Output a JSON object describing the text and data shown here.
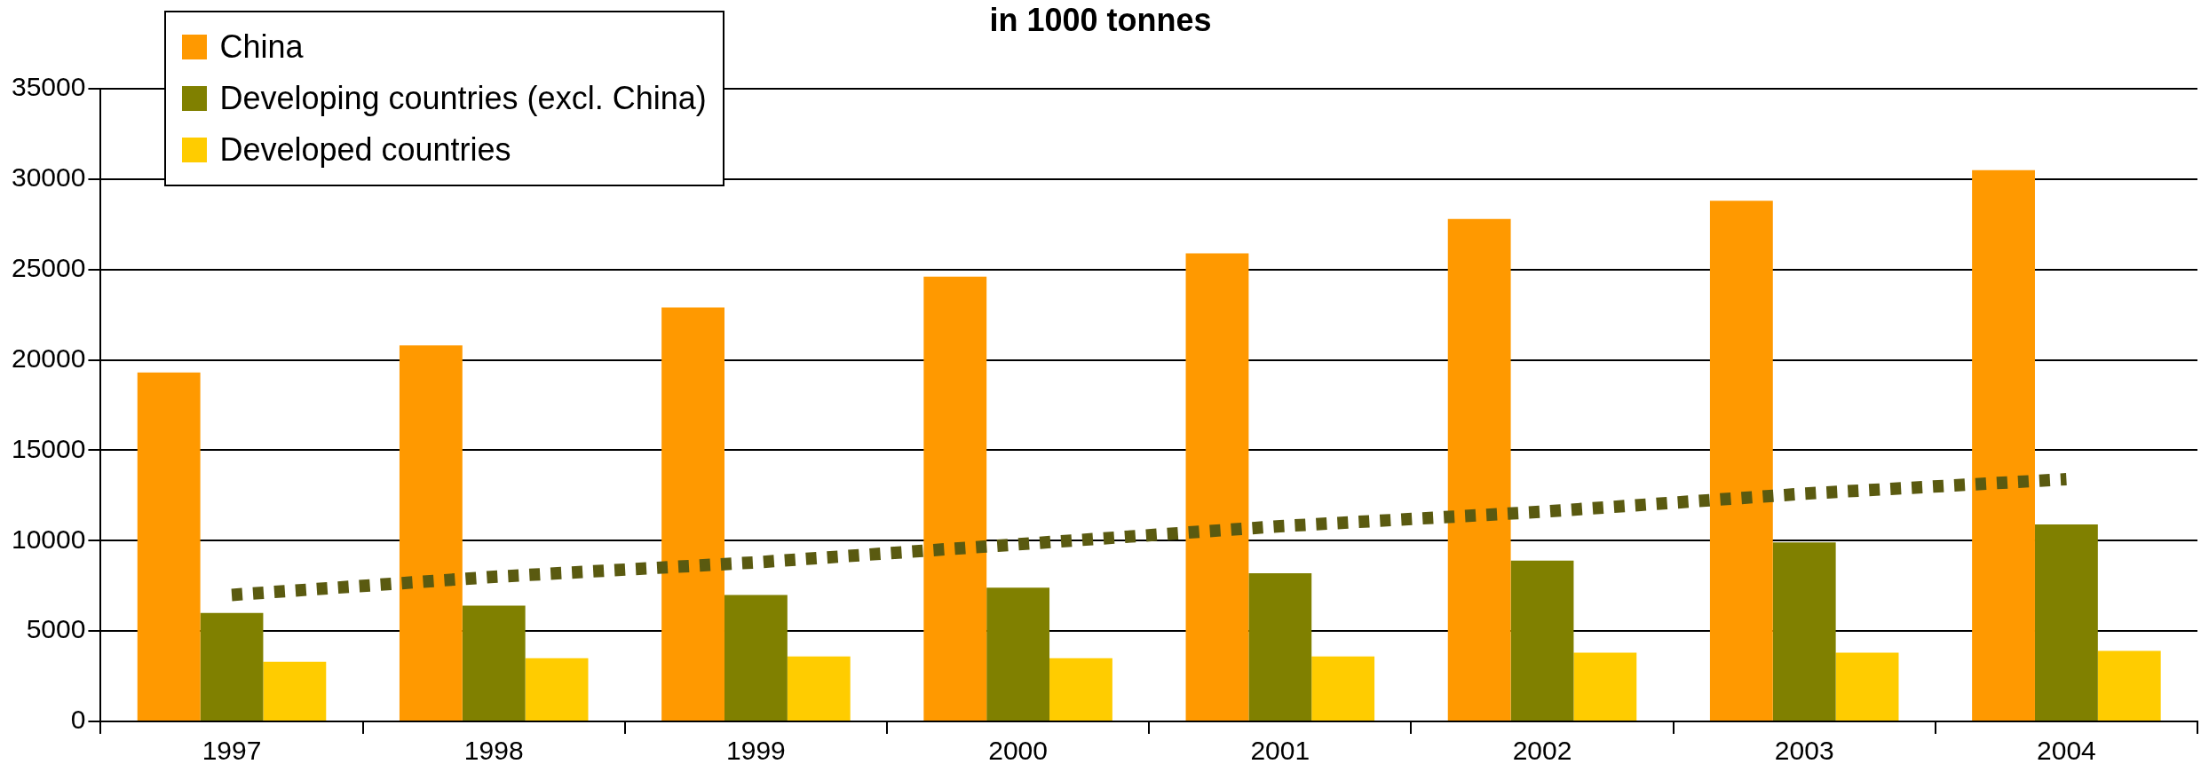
{
  "chart_data": {
    "type": "bar",
    "title": "in 1000 tonnes",
    "categories": [
      "1997",
      "1998",
      "1999",
      "2000",
      "2001",
      "2002",
      "2003",
      "2004"
    ],
    "series": [
      {
        "name": "China",
        "color": "#ff9900",
        "values": [
          19300,
          20800,
          22900,
          24600,
          25900,
          27800,
          28800,
          30500
        ]
      },
      {
        "name": "Developing countries (excl. China)",
        "color": "#808000",
        "values": [
          6000,
          6400,
          7000,
          7400,
          8200,
          8900,
          9900,
          10900
        ]
      },
      {
        "name": "Developed countries",
        "color": "#ffcc00",
        "values": [
          3300,
          3500,
          3600,
          3500,
          3600,
          3800,
          3800,
          3900
        ]
      },
      {
        "type": "line",
        "color": "#5a5a10",
        "line_style": "dotted",
        "marker": "none",
        "values": [
          7000,
          8000,
          8800,
          9800,
          10800,
          11600,
          12600,
          13400
        ]
      }
    ],
    "ylim": [
      0,
      35000
    ],
    "yticks": [
      0,
      5000,
      10000,
      15000,
      20000,
      25000,
      30000,
      35000
    ],
    "grid": "y",
    "legend": "top left"
  }
}
